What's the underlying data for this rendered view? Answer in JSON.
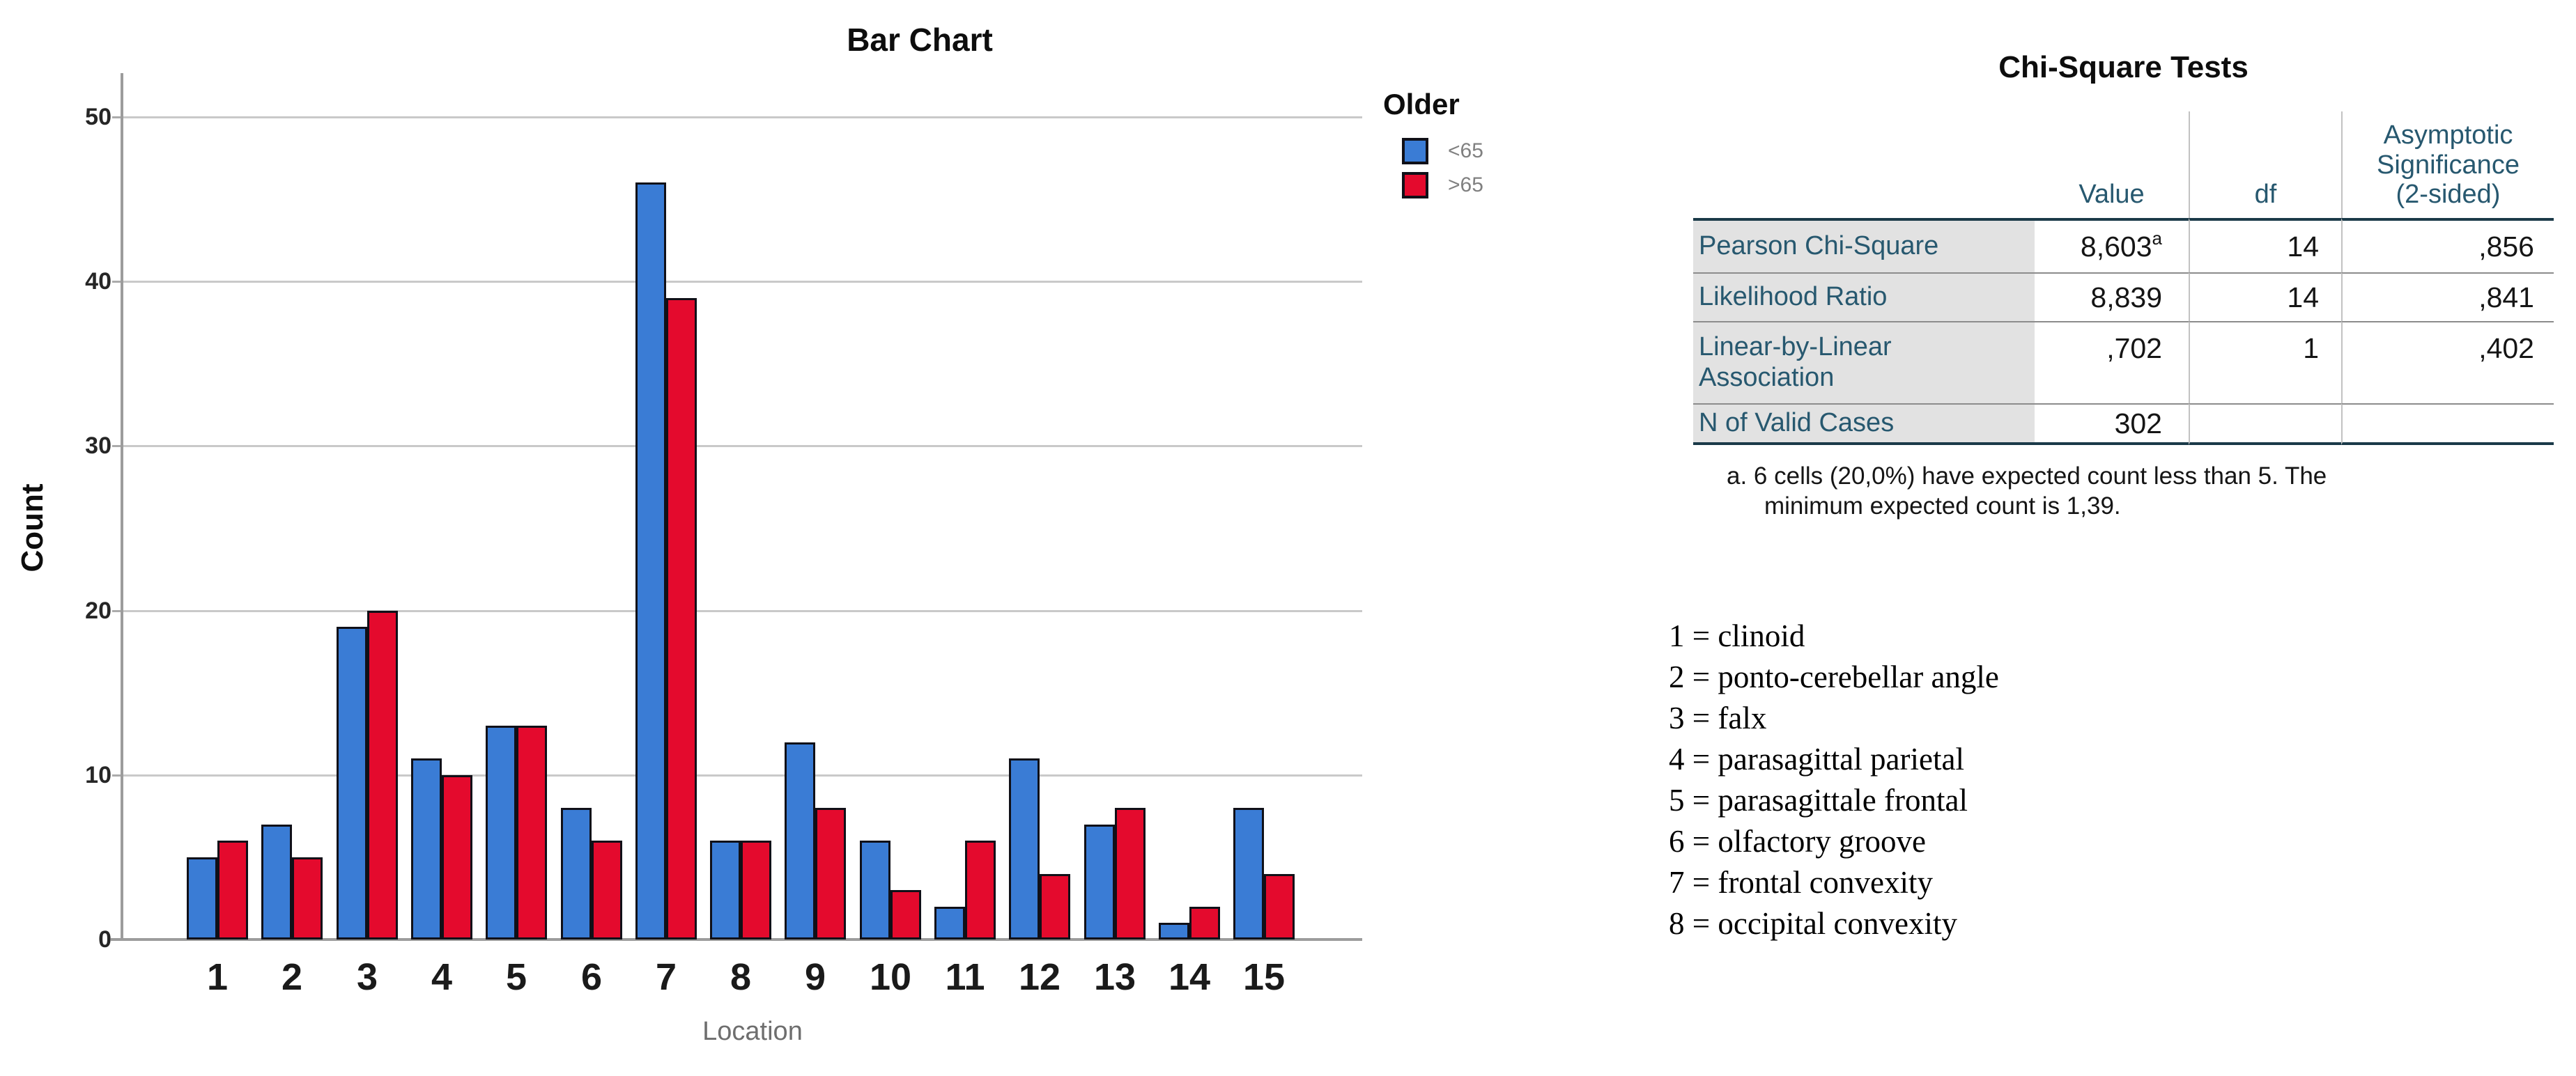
{
  "chart_data": [
    {
      "type": "bar",
      "title": "Bar Chart",
      "xlabel": "Location",
      "ylabel": "Count",
      "legend_title": "Older",
      "legend_position": "top-right",
      "grid": true,
      "categories": [
        "1",
        "2",
        "3",
        "4",
        "5",
        "6",
        "7",
        "8",
        "9",
        "10",
        "11",
        "12",
        "13",
        "14",
        "15"
      ],
      "series": [
        {
          "name": "<65",
          "color": "#3A7CD5",
          "values": [
            5,
            7,
            19,
            11,
            13,
            8,
            46,
            6,
            12,
            6,
            2,
            11,
            7,
            1,
            8
          ]
        },
        {
          "name": ">65",
          "color": "#E40A2D",
          "values": [
            6,
            5,
            20,
            10,
            13,
            6,
            39,
            6,
            8,
            3,
            6,
            4,
            8,
            2,
            4
          ]
        }
      ],
      "ylim": [
        0,
        53
      ],
      "yticks": [
        0,
        10,
        20,
        30,
        40,
        50
      ]
    },
    {
      "type": "table",
      "title": "Chi-Square Tests",
      "columns": [
        "",
        "Value",
        "df",
        "Asymptotic\nSignificance\n(2-sided)"
      ],
      "rows": [
        {
          "label": "Pearson Chi-Square",
          "value": "8,603",
          "value_sup": "a",
          "df": "14",
          "sig": ",856"
        },
        {
          "label": "Likelihood Ratio",
          "value": "8,839",
          "df": "14",
          "sig": ",841"
        },
        {
          "label": "Linear-by-Linear\nAssociation",
          "value": ",702",
          "df": "1",
          "sig": ",402"
        },
        {
          "label": "N of Valid Cases",
          "value": "302",
          "df": "",
          "sig": ""
        }
      ],
      "footnote_lines": [
        "a. 6 cells (20,0%) have expected count less than 5. The",
        "minimum expected count is 1,39."
      ]
    }
  ],
  "definitions": {
    "items": [
      "1 = clinoid",
      "2 = ponto-cerebellar angle",
      "3 = falx",
      "4 = parasagittal parietal",
      "5 = parasagittale frontal",
      "6 = olfactory groove",
      "7 = frontal convexity",
      "8 = occipital convexity"
    ]
  },
  "colors": {
    "series_under65": "#3A7CD5",
    "series_over65": "#E40A2D",
    "bar_outline": "#101018",
    "gridline": "#C9C9C9",
    "axis": "#9C9C9C",
    "table_text_teal": "#27586F",
    "table_thick_border": "#1B3A49",
    "table_thin_border": "#8C8C8C",
    "table_column_separator": "#C2C2C2",
    "table_label_background": "#E2E2E2"
  }
}
